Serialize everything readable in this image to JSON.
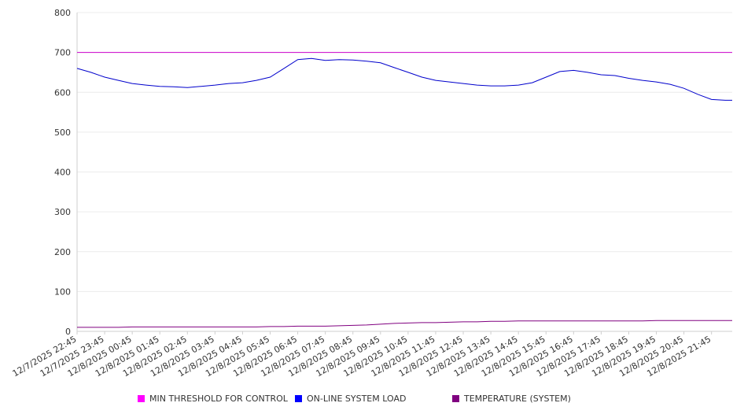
{
  "chart_data": {
    "type": "line",
    "title": "",
    "xlabel": "",
    "ylabel": "",
    "ylim": [
      0,
      800
    ],
    "yticks": [
      0,
      100,
      200,
      300,
      400,
      500,
      600,
      700,
      800
    ],
    "grid": true,
    "legend_position": "bottom",
    "x_tick_labels": [
      "12/7/2025 22:45",
      "12/7/2025 23:45",
      "12/8/2025 00:45",
      "12/8/2025 01:45",
      "12/8/2025 02:45",
      "12/8/2025 03:45",
      "12/8/2025 04:45",
      "12/8/2025 05:45",
      "12/8/2025 06:45",
      "12/8/2025 07:45",
      "12/8/2025 08:45",
      "12/8/2025 09:45",
      "12/8/2025 10:45",
      "12/8/2025 11:45",
      "12/8/2025 12:45",
      "12/8/2025 13:45",
      "12/8/2025 14:45",
      "12/8/2025 15:45",
      "12/8/2025 16:45",
      "12/8/2025 17:45",
      "12/8/2025 18:45",
      "12/8/2025 19:45",
      "12/8/2025 20:45",
      "12/8/2025 21:45"
    ],
    "x": [
      "12/7/2025 22:45",
      "12/7/2025 23:15",
      "12/7/2025 23:45",
      "12/8/2025 00:15",
      "12/8/2025 00:45",
      "12/8/2025 01:15",
      "12/8/2025 01:45",
      "12/8/2025 02:15",
      "12/8/2025 02:45",
      "12/8/2025 03:15",
      "12/8/2025 03:45",
      "12/8/2025 04:15",
      "12/8/2025 04:45",
      "12/8/2025 05:15",
      "12/8/2025 05:45",
      "12/8/2025 06:15",
      "12/8/2025 06:45",
      "12/8/2025 07:15",
      "12/8/2025 07:45",
      "12/8/2025 08:15",
      "12/8/2025 08:45",
      "12/8/2025 09:15",
      "12/8/2025 09:45",
      "12/8/2025 10:15",
      "12/8/2025 10:45",
      "12/8/2025 11:15",
      "12/8/2025 11:45",
      "12/8/2025 12:15",
      "12/8/2025 12:45",
      "12/8/2025 13:15",
      "12/8/2025 13:45",
      "12/8/2025 14:15",
      "12/8/2025 14:45",
      "12/8/2025 15:15",
      "12/8/2025 15:45",
      "12/8/2025 16:15",
      "12/8/2025 16:45",
      "12/8/2025 17:15",
      "12/8/2025 17:45",
      "12/8/2025 18:15",
      "12/8/2025 18:45",
      "12/8/2025 19:15",
      "12/8/2025 19:45",
      "12/8/2025 20:15",
      "12/8/2025 20:45",
      "12/8/2025 21:15",
      "12/8/2025 21:45",
      "12/8/2025 22:15",
      "12/8/2025 22:30"
    ],
    "series": [
      {
        "name": "MIN THRESHOLD FOR CONTROL",
        "color": "#cc00cc",
        "legend_color": "#ff00ff",
        "values": [
          700,
          700,
          700,
          700,
          700,
          700,
          700,
          700,
          700,
          700,
          700,
          700,
          700,
          700,
          700,
          700,
          700,
          700,
          700,
          700,
          700,
          700,
          700,
          700,
          700,
          700,
          700,
          700,
          700,
          700,
          700,
          700,
          700,
          700,
          700,
          700,
          700,
          700,
          700,
          700,
          700,
          700,
          700,
          700,
          700,
          700,
          700,
          700,
          700
        ]
      },
      {
        "name": "ON-LINE SYSTEM LOAD",
        "color": "#0000cc",
        "legend_color": "#0000ff",
        "values": [
          660,
          650,
          638,
          630,
          622,
          618,
          615,
          614,
          612,
          615,
          618,
          622,
          624,
          630,
          638,
          660,
          682,
          685,
          680,
          682,
          681,
          678,
          674,
          662,
          650,
          638,
          630,
          626,
          622,
          618,
          616,
          616,
          618,
          624,
          638,
          652,
          655,
          650,
          644,
          642,
          635,
          630,
          626,
          620,
          610,
          595,
          582,
          580,
          580
        ]
      },
      {
        "name": "TEMPERATURE (SYSTEM)",
        "color": "#800080",
        "legend_color": "#800080",
        "values": [
          10,
          10,
          10,
          10,
          11,
          11,
          11,
          11,
          11,
          11,
          11,
          11,
          11,
          11,
          12,
          12,
          13,
          13,
          13,
          14,
          15,
          16,
          18,
          20,
          21,
          22,
          22,
          23,
          24,
          24,
          25,
          25,
          26,
          26,
          26,
          26,
          26,
          26,
          26,
          26,
          26,
          26,
          27,
          27,
          27,
          27,
          27,
          27,
          27
        ]
      }
    ]
  }
}
